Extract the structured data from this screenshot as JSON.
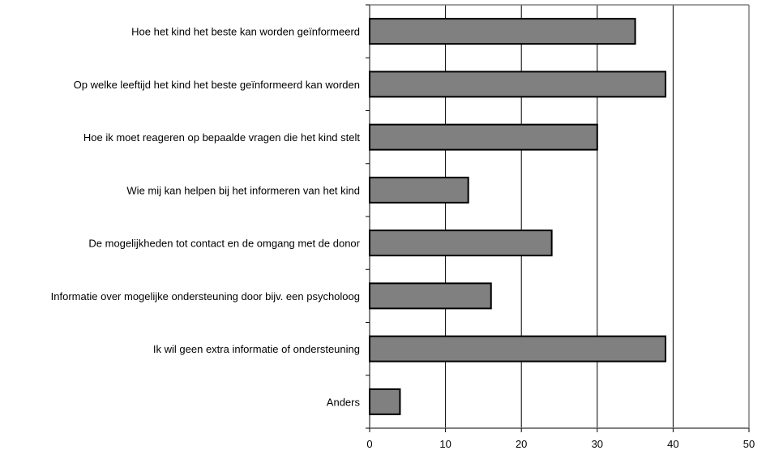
{
  "colors": {
    "bar_fill": "#808080",
    "bar_stroke": "#000000",
    "grid": "#000000",
    "axis": "#808080",
    "text": "#000000"
  },
  "chart_data": {
    "type": "bar",
    "orientation": "horizontal",
    "title": "",
    "xlabel": "",
    "ylabel": "",
    "xlim": [
      0,
      50
    ],
    "xticks": [
      0,
      10,
      20,
      30,
      40,
      50
    ],
    "grid": true,
    "legend": "none",
    "categories": [
      "Hoe het kind het beste kan worden geïnformeerd",
      "Op welke leeftijd het kind het beste geïnformeerd kan worden",
      "Hoe ik moet reageren op bepaalde vragen die het kind stelt",
      "Wie mij kan helpen bij het informeren van het kind",
      "De mogelijkheden tot contact en de omgang met de donor",
      "Informatie over mogelijke ondersteuning door bijv. een psycholoog",
      "Ik wil geen extra informatie of ondersteuning",
      "Anders"
    ],
    "values": [
      35,
      39,
      30,
      13,
      24,
      16,
      39,
      4
    ]
  }
}
